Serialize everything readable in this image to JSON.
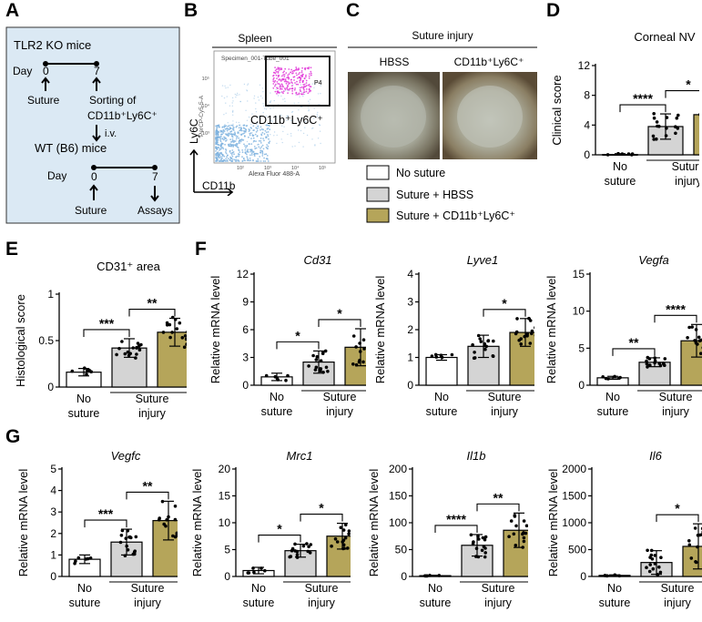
{
  "panel_labels": {
    "A": "A",
    "B": "B",
    "C": "C",
    "D": "D",
    "E": "E",
    "F": "F",
    "G": "G"
  },
  "colors": {
    "none": "#ffffff",
    "hbss": "#d4d4d4",
    "cd11b": "#b5a55a",
    "flowbg": "#dbe9f4",
    "gating": "#e23ad8",
    "cells": "#7db2de"
  },
  "panel_a": {
    "mouse1": "TLR2 KO mice",
    "day1_label": "Day",
    "day1_start": "0",
    "day1_end": "7",
    "suture1": "Suture",
    "sorting_line1": "Sorting of",
    "sorting_line2": "CD11b⁺Ly6C⁺",
    "iv": "i.v.",
    "mouse2": "WT (B6) mice",
    "day2_label": "Day",
    "day2_start": "0",
    "day2_end": "7",
    "suture2": "Suture",
    "assays": "Assays"
  },
  "panel_b": {
    "title": "Spleen",
    "specimen": "Specimen_001-Tube_001",
    "gate": "P4",
    "y_channel": "PerCP-Cy5-5-A",
    "x_channel": "Alexa Fluor 488-A",
    "population": "CD11b⁺Ly6C⁺",
    "y_marker": "Ly6C",
    "x_marker": "CD11b",
    "tick_1": "10³",
    "tick_2": "10⁴",
    "tick_3": "10⁵",
    "tick_4": "10²",
    "tick_5": "10³",
    "tick_6": "10⁴",
    "tick_7": "10⁵"
  },
  "panel_c": {
    "title": "Suture injury",
    "left": "HBSS",
    "right": "CD11b⁺Ly6C⁺"
  },
  "legend": {
    "none": "No suture",
    "hbss": "Suture + HBSS",
    "cd11b": "Suture + CD11b⁺Ly6C⁺"
  },
  "groups": {
    "no_suture_line1": "No",
    "no_suture_line2": "suture",
    "suture_injury_line1": "Suture",
    "suture_injury_line2": "injury"
  },
  "chart_data": [
    {
      "id": "D",
      "type": "bar",
      "title": "Corneal NV",
      "ylabel": "Clinical score",
      "ylim": [
        0,
        12
      ],
      "yticks": [
        0,
        4,
        8,
        12
      ],
      "series": [
        {
          "name": "No suture",
          "mean": 0.05,
          "sd": 0.1
        },
        {
          "name": "Suture + HBSS",
          "mean": 3.8,
          "sd": 1.7
        },
        {
          "name": "Suture + CD11b+Ly6C+",
          "mean": 5.4,
          "sd": 2.0
        }
      ],
      "significance": [
        {
          "from": 0,
          "to": 1,
          "label": "****"
        },
        {
          "from": 1,
          "to": 2,
          "label": "*"
        }
      ]
    },
    {
      "id": "E",
      "type": "bar",
      "title": "CD31⁺ area",
      "ylabel": "Histological score",
      "ylim": [
        0,
        1.0
      ],
      "yticks": [
        0,
        0.5,
        1.0
      ],
      "series": [
        {
          "name": "No suture",
          "mean": 0.16,
          "sd": 0.04
        },
        {
          "name": "Suture + HBSS",
          "mean": 0.42,
          "sd": 0.1
        },
        {
          "name": "Suture + CD11b+Ly6C+",
          "mean": 0.59,
          "sd": 0.15
        }
      ],
      "significance": [
        {
          "from": 0,
          "to": 1,
          "label": "***"
        },
        {
          "from": 1,
          "to": 2,
          "label": "**"
        }
      ]
    },
    {
      "id": "F1",
      "type": "bar",
      "title": "Cd31",
      "ylabel": "Relative mRNA level",
      "ylim": [
        0,
        12
      ],
      "yticks": [
        0,
        3,
        6,
        9,
        12
      ],
      "series": [
        {
          "name": "No suture",
          "mean": 0.9,
          "sd": 0.4
        },
        {
          "name": "Suture + HBSS",
          "mean": 2.5,
          "sd": 1.2
        },
        {
          "name": "Suture + CD11b+Ly6C+",
          "mean": 4.1,
          "sd": 2.0
        }
      ],
      "significance": [
        {
          "from": 0,
          "to": 1,
          "label": "*"
        },
        {
          "from": 1,
          "to": 2,
          "label": "*"
        }
      ]
    },
    {
      "id": "F2",
      "type": "bar",
      "title": "Lyve1",
      "ylabel": "Relative mRNA level",
      "ylim": [
        0,
        4
      ],
      "yticks": [
        0,
        1,
        2,
        3,
        4
      ],
      "series": [
        {
          "name": "No suture",
          "mean": 1.0,
          "sd": 0.1
        },
        {
          "name": "Suture + HBSS",
          "mean": 1.4,
          "sd": 0.4
        },
        {
          "name": "Suture + CD11b+Ly6C+",
          "mean": 1.9,
          "sd": 0.5
        }
      ],
      "significance": [
        {
          "from": 1,
          "to": 2,
          "label": "*"
        }
      ]
    },
    {
      "id": "F3",
      "type": "bar",
      "title": "Vegfa",
      "ylabel": "Relative mRNA level",
      "ylim": [
        0,
        15
      ],
      "yticks": [
        0,
        5,
        10,
        15
      ],
      "series": [
        {
          "name": "No suture",
          "mean": 1.0,
          "sd": 0.2
        },
        {
          "name": "Suture + HBSS",
          "mean": 3.1,
          "sd": 0.6
        },
        {
          "name": "Suture + CD11b+Ly6C+",
          "mean": 6.0,
          "sd": 2.2
        }
      ],
      "significance": [
        {
          "from": 0,
          "to": 1,
          "label": "**"
        },
        {
          "from": 1,
          "to": 2,
          "label": "****"
        }
      ]
    },
    {
      "id": "G1",
      "type": "bar",
      "title": "Vegfc",
      "ylabel": "Relative mRNA level",
      "ylim": [
        0,
        5
      ],
      "yticks": [
        0,
        1,
        2,
        3,
        4,
        5
      ],
      "series": [
        {
          "name": "No suture",
          "mean": 0.8,
          "sd": 0.2
        },
        {
          "name": "Suture + HBSS",
          "mean": 1.6,
          "sd": 0.6
        },
        {
          "name": "Suture + CD11b+Ly6C+",
          "mean": 2.6,
          "sd": 0.9
        }
      ],
      "significance": [
        {
          "from": 0,
          "to": 1,
          "label": "***"
        },
        {
          "from": 1,
          "to": 2,
          "label": "**"
        }
      ]
    },
    {
      "id": "G2",
      "type": "bar",
      "title": "Mrc1",
      "ylabel": "Relative mRNA level",
      "ylim": [
        0,
        20
      ],
      "yticks": [
        0,
        5,
        10,
        15,
        20
      ],
      "series": [
        {
          "name": "No suture",
          "mean": 1.1,
          "sd": 0.6
        },
        {
          "name": "Suture + HBSS",
          "mean": 4.8,
          "sd": 1.2
        },
        {
          "name": "Suture + CD11b+Ly6C+",
          "mean": 7.5,
          "sd": 2.4
        }
      ],
      "significance": [
        {
          "from": 0,
          "to": 1,
          "label": "*"
        },
        {
          "from": 1,
          "to": 2,
          "label": "*"
        }
      ]
    },
    {
      "id": "G3",
      "type": "bar",
      "title": "Il1b",
      "ylabel": "Relative mRNA level",
      "ylim": [
        0,
        200
      ],
      "yticks": [
        0,
        50,
        100,
        150,
        200
      ],
      "series": [
        {
          "name": "No suture",
          "mean": 1.5,
          "sd": 0.8
        },
        {
          "name": "Suture + HBSS",
          "mean": 58,
          "sd": 20
        },
        {
          "name": "Suture + CD11b+Ly6C+",
          "mean": 86,
          "sd": 32
        }
      ],
      "significance": [
        {
          "from": 0,
          "to": 1,
          "label": "****"
        },
        {
          "from": 1,
          "to": 2,
          "label": "**"
        }
      ]
    },
    {
      "id": "G4",
      "type": "bar",
      "title": "Il6",
      "ylabel": "Relative mRNA level",
      "ylim": [
        0,
        2000
      ],
      "yticks": [
        0,
        500,
        1000,
        1500,
        2000
      ],
      "series": [
        {
          "name": "No suture",
          "mean": 20,
          "sd": 10
        },
        {
          "name": "Suture + HBSS",
          "mean": 260,
          "sd": 220
        },
        {
          "name": "Suture + CD11b+Ly6C+",
          "mean": 560,
          "sd": 420
        }
      ],
      "significance": [
        {
          "from": 1,
          "to": 2,
          "label": "*"
        }
      ]
    }
  ]
}
